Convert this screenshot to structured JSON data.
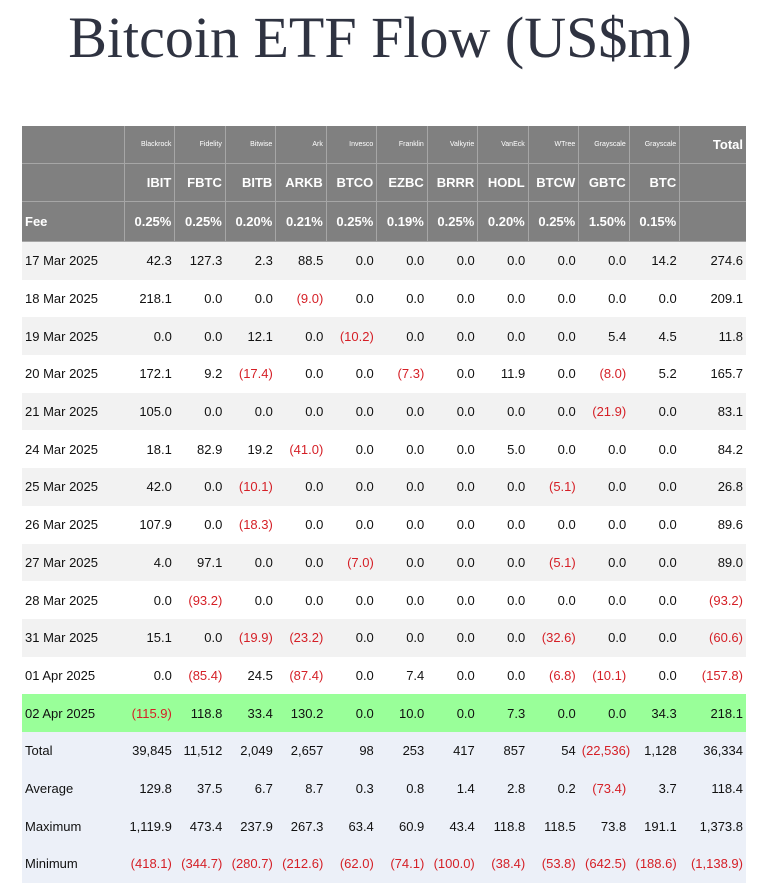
{
  "title": "Bitcoin ETF Flow (US$m)",
  "header": {
    "issuers": [
      "Blackrock",
      "Fidelity",
      "Bitwise",
      "Ark",
      "Invesco",
      "Franklin",
      "Valkyrie",
      "VanEck",
      "WTree",
      "Grayscale",
      "Grayscale"
    ],
    "tickers": [
      "IBIT",
      "FBTC",
      "BITB",
      "ARKB",
      "BTCO",
      "EZBC",
      "BRRR",
      "HODL",
      "BTCW",
      "GBTC",
      "BTC"
    ],
    "fee_label": "Fee",
    "fees": [
      "0.25%",
      "0.25%",
      "0.20%",
      "0.21%",
      "0.25%",
      "0.19%",
      "0.25%",
      "0.20%",
      "0.25%",
      "1.50%",
      "0.15%"
    ],
    "total_label": "Total"
  },
  "rows": [
    {
      "date": "17 Mar 2025",
      "values": [
        "42.3",
        "127.3",
        "2.3",
        "88.5",
        "0.0",
        "0.0",
        "0.0",
        "0.0",
        "0.0",
        "0.0",
        "14.2"
      ],
      "total": "274.6"
    },
    {
      "date": "18 Mar 2025",
      "values": [
        "218.1",
        "0.0",
        "0.0",
        "(9.0)",
        "0.0",
        "0.0",
        "0.0",
        "0.0",
        "0.0",
        "0.0",
        "0.0"
      ],
      "total": "209.1"
    },
    {
      "date": "19 Mar 2025",
      "values": [
        "0.0",
        "0.0",
        "12.1",
        "0.0",
        "(10.2)",
        "0.0",
        "0.0",
        "0.0",
        "0.0",
        "5.4",
        "4.5"
      ],
      "total": "11.8"
    },
    {
      "date": "20 Mar 2025",
      "values": [
        "172.1",
        "9.2",
        "(17.4)",
        "0.0",
        "0.0",
        "(7.3)",
        "0.0",
        "11.9",
        "0.0",
        "(8.0)",
        "5.2"
      ],
      "total": "165.7"
    },
    {
      "date": "21 Mar 2025",
      "values": [
        "105.0",
        "0.0",
        "0.0",
        "0.0",
        "0.0",
        "0.0",
        "0.0",
        "0.0",
        "0.0",
        "(21.9)",
        "0.0"
      ],
      "total": "83.1"
    },
    {
      "date": "24 Mar 2025",
      "values": [
        "18.1",
        "82.9",
        "19.2",
        "(41.0)",
        "0.0",
        "0.0",
        "0.0",
        "5.0",
        "0.0",
        "0.0",
        "0.0"
      ],
      "total": "84.2"
    },
    {
      "date": "25 Mar 2025",
      "values": [
        "42.0",
        "0.0",
        "(10.1)",
        "0.0",
        "0.0",
        "0.0",
        "0.0",
        "0.0",
        "(5.1)",
        "0.0",
        "0.0"
      ],
      "total": "26.8"
    },
    {
      "date": "26 Mar 2025",
      "values": [
        "107.9",
        "0.0",
        "(18.3)",
        "0.0",
        "0.0",
        "0.0",
        "0.0",
        "0.0",
        "0.0",
        "0.0",
        "0.0"
      ],
      "total": "89.6"
    },
    {
      "date": "27 Mar 2025",
      "values": [
        "4.0",
        "97.1",
        "0.0",
        "0.0",
        "(7.0)",
        "0.0",
        "0.0",
        "0.0",
        "(5.1)",
        "0.0",
        "0.0"
      ],
      "total": "89.0"
    },
    {
      "date": "28 Mar 2025",
      "values": [
        "0.0",
        "(93.2)",
        "0.0",
        "0.0",
        "0.0",
        "0.0",
        "0.0",
        "0.0",
        "0.0",
        "0.0",
        "0.0"
      ],
      "total": "(93.2)"
    },
    {
      "date": "31 Mar 2025",
      "values": [
        "15.1",
        "0.0",
        "(19.9)",
        "(23.2)",
        "0.0",
        "0.0",
        "0.0",
        "0.0",
        "(32.6)",
        "0.0",
        "0.0"
      ],
      "total": "(60.6)"
    },
    {
      "date": "01 Apr 2025",
      "values": [
        "0.0",
        "(85.4)",
        "24.5",
        "(87.4)",
        "0.0",
        "7.4",
        "0.0",
        "0.0",
        "(6.8)",
        "(10.1)",
        "0.0"
      ],
      "total": "(157.8)"
    },
    {
      "date": "02 Apr 2025",
      "values": [
        "(115.9)",
        "118.8",
        "33.4",
        "130.2",
        "0.0",
        "10.0",
        "0.0",
        "7.3",
        "0.0",
        "0.0",
        "34.3"
      ],
      "total": "218.1",
      "highlight": true
    }
  ],
  "summary": [
    {
      "label": "Total",
      "values": [
        "39,845",
        "11,512",
        "2,049",
        "2,657",
        "98",
        "253",
        "417",
        "857",
        "54",
        "(22,536)",
        "1,128"
      ],
      "total": "36,334"
    },
    {
      "label": "Average",
      "values": [
        "129.8",
        "37.5",
        "6.7",
        "8.7",
        "0.3",
        "0.8",
        "1.4",
        "2.8",
        "0.2",
        "(73.4)",
        "3.7"
      ],
      "total": "118.4"
    },
    {
      "label": "Maximum",
      "values": [
        "1,119.9",
        "473.4",
        "237.9",
        "267.3",
        "63.4",
        "60.9",
        "43.4",
        "118.8",
        "118.5",
        "73.8",
        "191.1"
      ],
      "total": "1,373.8"
    },
    {
      "label": "Minimum",
      "values": [
        "(418.1)",
        "(344.7)",
        "(280.7)",
        "(212.6)",
        "(62.0)",
        "(74.1)",
        "(100.0)",
        "(38.4)",
        "(53.8)",
        "(642.5)",
        "(188.6)"
      ],
      "total": "(1,138.9)"
    }
  ],
  "colors": {
    "header_bg": "#808080",
    "row_alt": "#f2f2f2",
    "highlight": "#99ff99",
    "summary_bg": "#ecf0f8",
    "negative": "#d51f26",
    "title": "#2f3341"
  }
}
